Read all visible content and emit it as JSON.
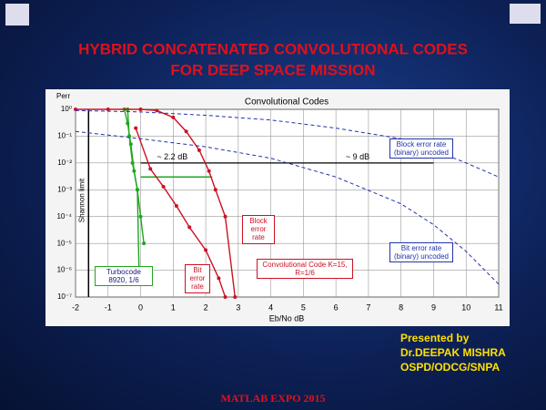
{
  "slide": {
    "title": [
      "HYBRID CONCATENATED CONVOLUTIONAL CODES",
      "FOR DEEP SPACE MISSION"
    ],
    "presenter": [
      "Presented  by",
      "Dr.DEEPAK MISHRA",
      "OSPD/ODCG/SNPA"
    ],
    "footer": "MATLAB EXPO 2015"
  },
  "chart_data": {
    "type": "line",
    "title": "Convolutional Codes",
    "x_label": "Eb/No  dB",
    "y_label": "Perr",
    "log_y": true,
    "grid": true,
    "xlim": [
      -2,
      11
    ],
    "xticks": [
      -2,
      -1,
      0,
      1,
      2,
      3,
      4,
      5,
      6,
      7,
      8,
      9,
      10,
      11
    ],
    "ylim": [
      1e-07,
      1
    ],
    "yticks": [
      {
        "value": 1,
        "label": "10⁰"
      },
      {
        "value": 0.1,
        "label": "10⁻¹"
      },
      {
        "value": 0.01,
        "label": "10⁻²"
      },
      {
        "value": 0.001,
        "label": "10⁻³"
      },
      {
        "value": 0.0001,
        "label": "10⁻⁴"
      },
      {
        "value": 1e-05,
        "label": "10⁻⁵"
      },
      {
        "value": 1e-06,
        "label": "10⁻⁶"
      },
      {
        "value": 1e-07,
        "label": "10⁻⁷"
      }
    ],
    "series": [
      {
        "name": "Turbocode 8920, 1/6",
        "color": "#1fa61f",
        "marker": true,
        "x": [
          -0.5,
          -0.4,
          -0.3,
          -0.2,
          -0.1,
          0,
          0.1
        ],
        "values": [
          1,
          0.3,
          0.05,
          0.005,
          0.001,
          0.0001,
          1e-05
        ]
      },
      {
        "color": "#1fa61f",
        "marker": true,
        "x": [
          -0.4,
          -0.35,
          -0.25,
          -0.1,
          -0.05
        ],
        "values": [
          1,
          0.1,
          0.01,
          0.001,
          1e-06
        ]
      },
      {
        "name": "Block error rate",
        "color": "#cc1122",
        "marker": true,
        "x": [
          -2,
          -1,
          0,
          0.5,
          1,
          1.4,
          1.8,
          2.1,
          2.3,
          2.6,
          2.9
        ],
        "values": [
          1,
          1,
          1,
          0.9,
          0.5,
          0.15,
          0.03,
          0.005,
          0.001,
          0.0001,
          1e-07
        ]
      },
      {
        "name": "Bit error rate",
        "color": "#cc1122",
        "marker": true,
        "x": [
          -0.15,
          0.3,
          0.7,
          1.1,
          1.5,
          2,
          2.4,
          2.6
        ],
        "values": [
          0.2,
          0.006,
          0.0013,
          0.00025,
          4e-05,
          5.6e-06,
          5e-07,
          1e-07
        ]
      },
      {
        "name": "Block error rate (binary) uncoded",
        "color": "#2233aa",
        "dash": true,
        "x": [
          -2,
          0,
          2,
          4,
          6,
          8,
          9,
          10,
          11
        ],
        "values": [
          0.9,
          0.8,
          0.6,
          0.4,
          0.2,
          0.08,
          0.03,
          0.01,
          0.003
        ]
      },
      {
        "name": "Bit error rate (binary) uncoded",
        "color": "#2233aa",
        "dash": true,
        "x": [
          -2,
          0,
          2,
          4,
          6,
          8,
          9,
          10,
          11
        ],
        "values": [
          0.15,
          0.08,
          0.04,
          0.015,
          0.003,
          0.0003,
          5e-05,
          5e-06,
          3e-07
        ]
      }
    ],
    "annotations": [
      "Shannon limit",
      "~ 2.2 dB",
      "~ 9 dB",
      "Convolutional Code K=15, R=1/6"
    ]
  }
}
